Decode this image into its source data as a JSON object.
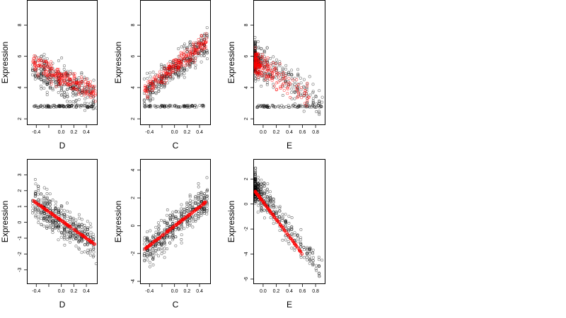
{
  "figure": {
    "background": "#ffffff",
    "point_colors": {
      "observed": "#000000",
      "fitted": "#ff0000"
    }
  },
  "chart_data": [
    {
      "type": "scatter",
      "row": 1,
      "col": 1,
      "xlabel": "D",
      "ylabel": "Expression",
      "xlim": [
        -0.55,
        0.58
      ],
      "ylim": [
        1.6,
        9.6
      ],
      "xticks": [
        -0.4,
        -0.2,
        0.0,
        0.2,
        0.4
      ],
      "xtick_labels": [
        "-0.4",
        "",
        "0.0",
        "0.2",
        "0.4"
      ],
      "yticks": [
        2,
        4,
        6,
        8
      ],
      "ytick_labels": [
        "2",
        "4",
        "6",
        "8"
      ],
      "series": [
        {
          "role": "observed",
          "color": "#000000",
          "x_range": [
            -0.46,
            0.56
          ],
          "y_center": [
            5.2,
            3.4
          ],
          "y_spread": 1.9,
          "bands": [
            {
              "y": 2.8,
              "x_from": -0.44,
              "x_to": 0.5,
              "weight": 0.22
            }
          ]
        },
        {
          "role": "fitted",
          "color": "#ff0000",
          "x_range": [
            -0.46,
            0.56
          ],
          "y_center": [
            5.6,
            3.6
          ],
          "y_spread": 1.1
        }
      ]
    },
    {
      "type": "scatter",
      "row": 1,
      "col": 2,
      "xlabel": "C",
      "ylabel": "Expression",
      "xlim": [
        -0.55,
        0.58
      ],
      "ylim": [
        1.6,
        9.6
      ],
      "xticks": [
        -0.4,
        -0.2,
        0.0,
        0.2,
        0.4
      ],
      "xtick_labels": [
        "-0.4",
        "",
        "0.0",
        "0.2",
        "0.4"
      ],
      "yticks": [
        2,
        4,
        6,
        8
      ],
      "ytick_labels": [
        "2",
        "4",
        "6",
        "8"
      ],
      "series": [
        {
          "role": "observed",
          "color": "#000000",
          "x_range": [
            -0.48,
            0.52
          ],
          "y_center": [
            3.6,
            6.9
          ],
          "y_spread": 1.6,
          "bands": [
            {
              "y": 2.8,
              "x_from": -0.48,
              "x_to": 0.48,
              "weight": 0.22
            }
          ]
        },
        {
          "role": "fitted",
          "color": "#ff0000",
          "x_range": [
            -0.48,
            0.52
          ],
          "y_center": [
            3.8,
            7.0
          ],
          "y_spread": 1.0
        }
      ]
    },
    {
      "type": "scatter",
      "row": 1,
      "col": 3,
      "xlabel": "E",
      "ylabel": "Expression",
      "xlim": [
        -0.15,
        0.95
      ],
      "ylim": [
        1.6,
        9.6
      ],
      "xticks": [
        0.0,
        0.2,
        0.4,
        0.6,
        0.8
      ],
      "xtick_labels": [
        "0.0",
        "0.2",
        "0.4",
        "0.6",
        "0.8"
      ],
      "yticks": [
        2,
        4,
        6,
        8
      ],
      "ytick_labels": [
        "2",
        "4",
        "6",
        "8"
      ],
      "series": [
        {
          "role": "observed",
          "color": "#000000",
          "x_range": [
            -0.12,
            0.9
          ],
          "x_skew": 3.0,
          "y_center": [
            5.8,
            3.0
          ],
          "y_spread": 2.0,
          "bands": [
            {
              "y": 2.8,
              "x_from": -0.1,
              "x_to": 0.9,
              "weight": 0.2
            }
          ]
        },
        {
          "role": "fitted",
          "color": "#ff0000",
          "x_range": [
            -0.12,
            0.7
          ],
          "x_skew": 3.0,
          "y_center": [
            5.6,
            3.4
          ],
          "y_spread": 1.3
        }
      ]
    },
    {
      "type": "scatter",
      "row": 2,
      "col": 1,
      "xlabel": "D",
      "ylabel": "Expression",
      "xlim": [
        -0.55,
        0.58
      ],
      "ylim": [
        -3.9,
        4.0
      ],
      "xticks": [
        -0.4,
        -0.2,
        0.0,
        0.2,
        0.4
      ],
      "xtick_labels": [
        "-0.4",
        "",
        "0.0",
        "0.2",
        "0.4"
      ],
      "yticks": [
        -3,
        -2,
        -1,
        0,
        1,
        2,
        3
      ],
      "ytick_labels": [
        "-3",
        "-2",
        "-1",
        "0",
        "1",
        "2",
        "3"
      ],
      "series": [
        {
          "role": "observed",
          "color": "#000000",
          "x_range": [
            -0.46,
            0.56
          ],
          "y_center": [
            1.4,
            -1.4
          ],
          "y_spread": 2.0
        },
        {
          "role": "fitted",
          "color": "#ff0000",
          "x_range": [
            -0.46,
            0.54
          ],
          "y_center": [
            1.4,
            -1.4
          ],
          "y_spread": 0.08
        }
      ]
    },
    {
      "type": "scatter",
      "row": 2,
      "col": 2,
      "xlabel": "C",
      "ylabel": "Expression",
      "xlim": [
        -0.55,
        0.58
      ],
      "ylim": [
        -4.2,
        4.8
      ],
      "xticks": [
        -0.4,
        -0.2,
        0.0,
        0.2,
        0.4
      ],
      "xtick_labels": [
        "-0.4",
        "",
        "0.0",
        "0.2",
        "0.4"
      ],
      "yticks": [
        -4,
        -2,
        0,
        2,
        4
      ],
      "ytick_labels": [
        "-4",
        "-2",
        "0",
        "2",
        "4"
      ],
      "series": [
        {
          "role": "observed",
          "color": "#000000",
          "x_range": [
            -0.48,
            0.52
          ],
          "y_center": [
            -1.8,
            1.9
          ],
          "y_spread": 2.1
        },
        {
          "role": "fitted",
          "color": "#ff0000",
          "x_range": [
            -0.48,
            0.5
          ],
          "y_center": [
            -1.7,
            1.7
          ],
          "y_spread": 0.1
        }
      ]
    },
    {
      "type": "scatter",
      "row": 2,
      "col": 3,
      "xlabel": "E",
      "ylabel": "Expression",
      "xlim": [
        -0.15,
        0.95
      ],
      "ylim": [
        -6.4,
        3.6
      ],
      "xticks": [
        0.0,
        0.2,
        0.4,
        0.6,
        0.8
      ],
      "xtick_labels": [
        "0.0",
        "0.2",
        "0.4",
        "0.6",
        "0.8"
      ],
      "yticks": [
        -6,
        -4,
        -2,
        0,
        2
      ],
      "ytick_labels": [
        "-6",
        "-4",
        "-2",
        "0",
        "2"
      ],
      "series": [
        {
          "role": "observed",
          "color": "#000000",
          "x_range": [
            -0.12,
            0.9
          ],
          "x_skew": 3.0,
          "y_center": [
            1.3,
            -5.4
          ],
          "y_spread": 2.2
        },
        {
          "role": "fitted",
          "color": "#ff0000",
          "x_range": [
            -0.12,
            0.6
          ],
          "x_skew": 1.6,
          "y_center": [
            1.0,
            -4.0
          ],
          "y_spread": 0.1
        }
      ]
    }
  ]
}
